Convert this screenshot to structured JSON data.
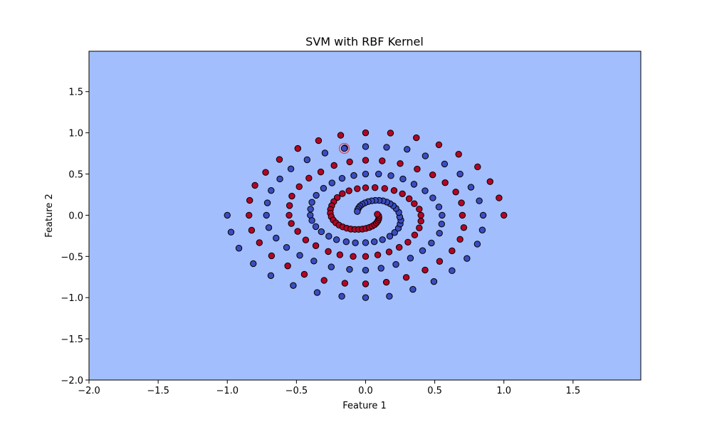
{
  "chart_data": {
    "type": "scatter",
    "title": "SVM with RBF Kernel",
    "xlabel": "Feature 1",
    "ylabel": "Feature 2",
    "xlim": [
      -2.0,
      1.99
    ],
    "ylim": [
      -2.0,
      1.99
    ],
    "grid": false,
    "legend": "none",
    "decision_region": "single region, light blue",
    "xticks": [
      -2.0,
      -1.5,
      -1.0,
      -0.5,
      0.0,
      0.5,
      1.0,
      1.5
    ],
    "xtick_labels": [
      "−2.0",
      "−1.5",
      "−1.0",
      "−0.5",
      "0.0",
      "0.5",
      "1.0",
      "1.5"
    ],
    "yticks": [
      -2.0,
      -1.5,
      -1.0,
      -0.5,
      0.0,
      0.5,
      1.0,
      1.5
    ],
    "ytick_labels": [
      "−2.0",
      "−1.5",
      "−1.0",
      "−0.5",
      "0.0",
      "0.5",
      "1.0",
      "1.5"
    ],
    "series": [
      {
        "values": [
          [
            -1.0,
            0.0
          ],
          [
            -0.973,
            -0.205
          ],
          [
            -0.916,
            -0.4
          ],
          [
            -0.812,
            -0.587
          ],
          [
            -0.685,
            -0.733
          ],
          [
            -0.523,
            -0.853
          ],
          [
            -0.35,
            -0.938
          ],
          [
            -0.172,
            -0.984
          ],
          [
            0.0,
            -1.0
          ],
          [
            0.172,
            -0.984
          ],
          [
            0.342,
            -0.9
          ],
          [
            0.494,
            -0.805
          ],
          [
            0.625,
            -0.673
          ],
          [
            0.733,
            -0.525
          ],
          [
            0.808,
            -0.35
          ],
          [
            0.844,
            -0.18
          ],
          [
            0.85,
            0.0
          ],
          [
            0.822,
            0.175
          ],
          [
            0.762,
            0.34
          ],
          [
            0.683,
            0.5
          ],
          [
            0.571,
            0.622
          ],
          [
            0.432,
            0.72
          ],
          [
            0.3,
            0.8
          ],
          [
            0.152,
            0.825
          ],
          [
            0.0,
            0.833
          ],
          [
            -0.151,
            0.816
          ],
          [
            -0.294,
            0.755
          ],
          [
            -0.423,
            0.673
          ],
          [
            -0.54,
            0.562
          ],
          [
            -0.62,
            0.44
          ],
          [
            -0.683,
            0.3
          ],
          [
            -0.71,
            0.15
          ],
          [
            -0.717,
            0.0
          ],
          [
            -0.7,
            -0.15
          ],
          [
            -0.647,
            -0.277
          ],
          [
            -0.571,
            -0.391
          ],
          [
            -0.476,
            -0.487
          ],
          [
            -0.374,
            -0.556
          ],
          [
            -0.248,
            -0.627
          ],
          [
            -0.116,
            -0.658
          ],
          [
            0.0,
            -0.667
          ],
          [
            0.112,
            -0.643
          ],
          [
            0.219,
            -0.597
          ],
          [
            0.324,
            -0.521
          ],
          [
            0.412,
            -0.43
          ],
          [
            0.476,
            -0.337
          ],
          [
            0.534,
            -0.218
          ],
          [
            0.55,
            -0.107
          ],
          [
            0.553,
            0.0
          ],
          [
            0.53,
            0.1
          ],
          [
            0.486,
            0.21
          ],
          [
            0.43,
            0.297
          ],
          [
            0.35,
            0.376
          ],
          [
            0.27,
            0.44
          ],
          [
            0.183,
            0.48
          ],
          [
            0.094,
            0.5
          ],
          [
            0.0,
            0.5
          ],
          [
            -0.085,
            0.482
          ],
          [
            -0.17,
            0.448
          ],
          [
            -0.243,
            0.392
          ],
          [
            -0.304,
            0.327
          ],
          [
            -0.357,
            0.242
          ],
          [
            -0.388,
            0.157
          ],
          [
            -0.398,
            0.074
          ],
          [
            -0.4,
            0.0
          ],
          [
            -0.388,
            -0.064
          ],
          [
            -0.36,
            -0.138
          ],
          [
            -0.32,
            -0.2
          ],
          [
            -0.266,
            -0.255
          ],
          [
            -0.21,
            -0.297
          ],
          [
            -0.14,
            -0.322
          ],
          [
            -0.074,
            -0.335
          ],
          [
            0.0,
            -0.333
          ],
          [
            0.063,
            -0.322
          ],
          [
            0.122,
            -0.297
          ],
          [
            0.175,
            -0.255
          ],
          [
            0.21,
            -0.21
          ],
          [
            0.237,
            -0.158
          ],
          [
            0.25,
            -0.106
          ],
          [
            0.255,
            -0.06
          ],
          [
            0.247,
            -0.02
          ],
          [
            0.24,
            0.035
          ],
          [
            0.22,
            0.082
          ],
          [
            0.2,
            0.115
          ],
          [
            0.177,
            0.14
          ],
          [
            0.153,
            0.16
          ],
          [
            0.126,
            0.175
          ],
          [
            0.098,
            0.18
          ],
          [
            0.07,
            0.18
          ],
          [
            0.044,
            0.175
          ],
          [
            0.018,
            0.165
          ],
          [
            -0.005,
            0.15
          ],
          [
            -0.025,
            0.132
          ],
          [
            -0.04,
            0.112
          ],
          [
            -0.05,
            0.09
          ],
          [
            -0.057,
            0.068
          ],
          [
            -0.06,
            0.045
          ],
          [
            -0.154,
            0.811
          ]
        ],
        "color": "#3b4cc0"
      },
      {
        "values": [
          [
            1.0,
            0.0
          ],
          [
            0.965,
            0.21
          ],
          [
            0.9,
            0.408
          ],
          [
            0.81,
            0.587
          ],
          [
            0.673,
            0.74
          ],
          [
            0.53,
            0.855
          ],
          [
            0.367,
            0.94
          ],
          [
            0.18,
            0.997
          ],
          [
            0.0,
            1.0
          ],
          [
            -0.18,
            0.97
          ],
          [
            -0.34,
            0.906
          ],
          [
            -0.49,
            0.81
          ],
          [
            -0.623,
            0.677
          ],
          [
            -0.723,
            0.52
          ],
          [
            -0.8,
            0.363
          ],
          [
            -0.838,
            0.18
          ],
          [
            -0.843,
            0.0
          ],
          [
            -0.824,
            -0.182
          ],
          [
            -0.768,
            -0.333
          ],
          [
            -0.68,
            -0.492
          ],
          [
            -0.563,
            -0.615
          ],
          [
            -0.443,
            -0.717
          ],
          [
            -0.3,
            -0.79
          ],
          [
            -0.15,
            -0.825
          ],
          [
            0.0,
            -0.833
          ],
          [
            0.15,
            -0.813
          ],
          [
            0.294,
            -0.755
          ],
          [
            0.43,
            -0.665
          ],
          [
            0.535,
            -0.56
          ],
          [
            0.625,
            -0.432
          ],
          [
            0.683,
            -0.293
          ],
          [
            0.71,
            -0.15
          ],
          [
            0.7,
            0.0
          ],
          [
            0.693,
            0.15
          ],
          [
            0.652,
            0.282
          ],
          [
            0.575,
            0.395
          ],
          [
            0.485,
            0.49
          ],
          [
            0.373,
            0.56
          ],
          [
            0.25,
            0.627
          ],
          [
            0.12,
            0.66
          ],
          [
            0.0,
            0.667
          ],
          [
            -0.115,
            0.648
          ],
          [
            -0.228,
            0.604
          ],
          [
            -0.324,
            0.525
          ],
          [
            -0.41,
            0.45
          ],
          [
            -0.48,
            0.346
          ],
          [
            -0.533,
            0.232
          ],
          [
            -0.55,
            0.117
          ],
          [
            -0.553,
            0.0
          ],
          [
            -0.537,
            -0.1
          ],
          [
            -0.491,
            -0.196
          ],
          [
            -0.433,
            -0.3
          ],
          [
            -0.36,
            -0.37
          ],
          [
            -0.27,
            -0.44
          ],
          [
            -0.186,
            -0.48
          ],
          [
            -0.09,
            -0.5
          ],
          [
            0.0,
            -0.5
          ],
          [
            0.088,
            -0.482
          ],
          [
            0.17,
            -0.445
          ],
          [
            0.243,
            -0.39
          ],
          [
            0.306,
            -0.327
          ],
          [
            0.355,
            -0.24
          ],
          [
            0.388,
            -0.154
          ],
          [
            0.4,
            -0.071
          ],
          [
            0.4,
            0.0
          ],
          [
            0.388,
            0.074
          ],
          [
            0.352,
            0.14
          ],
          [
            0.315,
            0.2
          ],
          [
            0.266,
            0.26
          ],
          [
            0.206,
            0.3
          ],
          [
            0.138,
            0.325
          ],
          [
            0.068,
            0.335
          ],
          [
            0.0,
            0.333
          ],
          [
            -0.06,
            0.322
          ],
          [
            -0.12,
            0.297
          ],
          [
            -0.168,
            0.262
          ],
          [
            -0.205,
            0.215
          ],
          [
            -0.23,
            0.165
          ],
          [
            -0.245,
            0.115
          ],
          [
            -0.254,
            0.07
          ],
          [
            -0.255,
            0.025
          ],
          [
            -0.248,
            -0.018
          ],
          [
            -0.234,
            -0.058
          ],
          [
            -0.215,
            -0.092
          ],
          [
            -0.192,
            -0.12
          ],
          [
            -0.165,
            -0.142
          ],
          [
            -0.136,
            -0.158
          ],
          [
            -0.107,
            -0.168
          ],
          [
            -0.078,
            -0.172
          ],
          [
            -0.05,
            -0.172
          ],
          [
            -0.023,
            -0.168
          ],
          [
            0.003,
            -0.16
          ],
          [
            0.027,
            -0.148
          ],
          [
            0.048,
            -0.133
          ],
          [
            0.065,
            -0.115
          ],
          [
            0.078,
            -0.095
          ],
          [
            0.088,
            -0.072
          ],
          [
            0.094,
            -0.05
          ],
          [
            0.096,
            -0.028
          ],
          [
            0.094,
            -0.007
          ],
          [
            0.085,
            0.012
          ]
        ],
        "color": "#b40426"
      }
    ],
    "highlighted_point": {
      "x": -0.154,
      "y": 0.811,
      "ring_color": "#e8414d"
    },
    "colors": {
      "background_region": "#a3befc",
      "class_0": "#3b4cc0",
      "class_1": "#b40426",
      "marker_edge": "#000000"
    }
  }
}
